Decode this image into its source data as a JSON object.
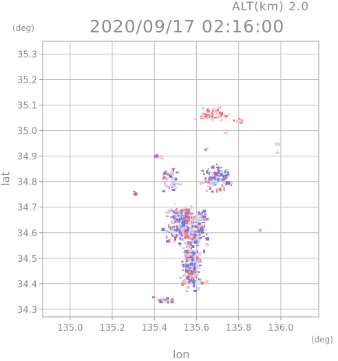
{
  "header": {
    "alt_label": "ALT(km) 2.0",
    "timestamp": "2020/09/17 02:16:00"
  },
  "axes": {
    "y_unit": "(deg)",
    "x_unit": "(deg)",
    "y_title": "lat",
    "x_title": "lon"
  },
  "colors": {
    "axis": "#9a9a9a",
    "grid": "#bdbdbd",
    "positive": "#e8767a",
    "negative": "#6f78e6",
    "light_positive": "#f6c8c8",
    "light_negative": "#c8cdf6"
  },
  "chart_data": {
    "type": "heatmap",
    "title": "2020/09/17 02:16:00",
    "subtitle": "ALT(km) 2.0",
    "xlabel": "lon",
    "ylabel": "lat",
    "x_unit": "(deg)",
    "y_unit": "(deg)",
    "xlim": [
      134.87,
      136.18
    ],
    "ylim": [
      34.27,
      35.35
    ],
    "xticks": [
      "135.0",
      "135.2",
      "135.4",
      "135.6",
      "135.8",
      "136.0"
    ],
    "yticks": [
      "34.3",
      "34.4",
      "34.5",
      "34.6",
      "34.7",
      "34.8",
      "34.9",
      "35.0",
      "35.1",
      "35.2",
      "35.3"
    ],
    "grid": true,
    "colorbar": false,
    "clusters": [
      {
        "lon": 135.55,
        "lat": 34.62,
        "sx": 0.07,
        "sy": 0.055,
        "n": 260,
        "sign": "mixed"
      },
      {
        "lon": 135.57,
        "lat": 34.48,
        "sx": 0.035,
        "sy": 0.07,
        "n": 200,
        "sign": "mixed"
      },
      {
        "lon": 135.52,
        "lat": 34.68,
        "sx": 0.05,
        "sy": 0.02,
        "n": 80,
        "sign": "mixed"
      },
      {
        "lon": 135.69,
        "lat": 34.82,
        "sx": 0.05,
        "sy": 0.04,
        "n": 110,
        "sign": "mixed"
      },
      {
        "lon": 135.47,
        "lat": 34.81,
        "sx": 0.035,
        "sy": 0.035,
        "n": 45,
        "sign": "mixed"
      },
      {
        "lon": 135.68,
        "lat": 35.07,
        "sx": 0.06,
        "sy": 0.02,
        "n": 55,
        "sign": "positive"
      },
      {
        "lon": 135.8,
        "lat": 35.04,
        "sx": 0.02,
        "sy": 0.008,
        "n": 12,
        "sign": "positive"
      },
      {
        "lon": 135.73,
        "lat": 35.0,
        "sx": 0.01,
        "sy": 0.01,
        "n": 5,
        "sign": "positive"
      },
      {
        "lon": 135.44,
        "lat": 34.34,
        "sx": 0.04,
        "sy": 0.01,
        "n": 18,
        "sign": "mixed"
      },
      {
        "lon": 135.58,
        "lat": 34.41,
        "sx": 0.04,
        "sy": 0.01,
        "n": 25,
        "sign": "mixed"
      },
      {
        "lon": 135.3,
        "lat": 34.76,
        "sx": 0.006,
        "sy": 0.006,
        "n": 3,
        "sign": "mixed"
      },
      {
        "lon": 135.42,
        "lat": 34.9,
        "sx": 0.02,
        "sy": 0.008,
        "n": 8,
        "sign": "mixed"
      },
      {
        "lon": 135.62,
        "lat": 34.66,
        "sx": 0.02,
        "sy": 0.02,
        "n": 14,
        "sign": "mixed"
      },
      {
        "lon": 135.98,
        "lat": 34.94,
        "sx": 0.01,
        "sy": 0.03,
        "n": 6,
        "sign": "positive"
      },
      {
        "lon": 135.9,
        "lat": 34.62,
        "sx": 0.005,
        "sy": 0.005,
        "n": 2,
        "sign": "negative"
      },
      {
        "lon": 135.64,
        "lat": 34.93,
        "sx": 0.012,
        "sy": 0.006,
        "n": 4,
        "sign": "positive"
      }
    ]
  }
}
